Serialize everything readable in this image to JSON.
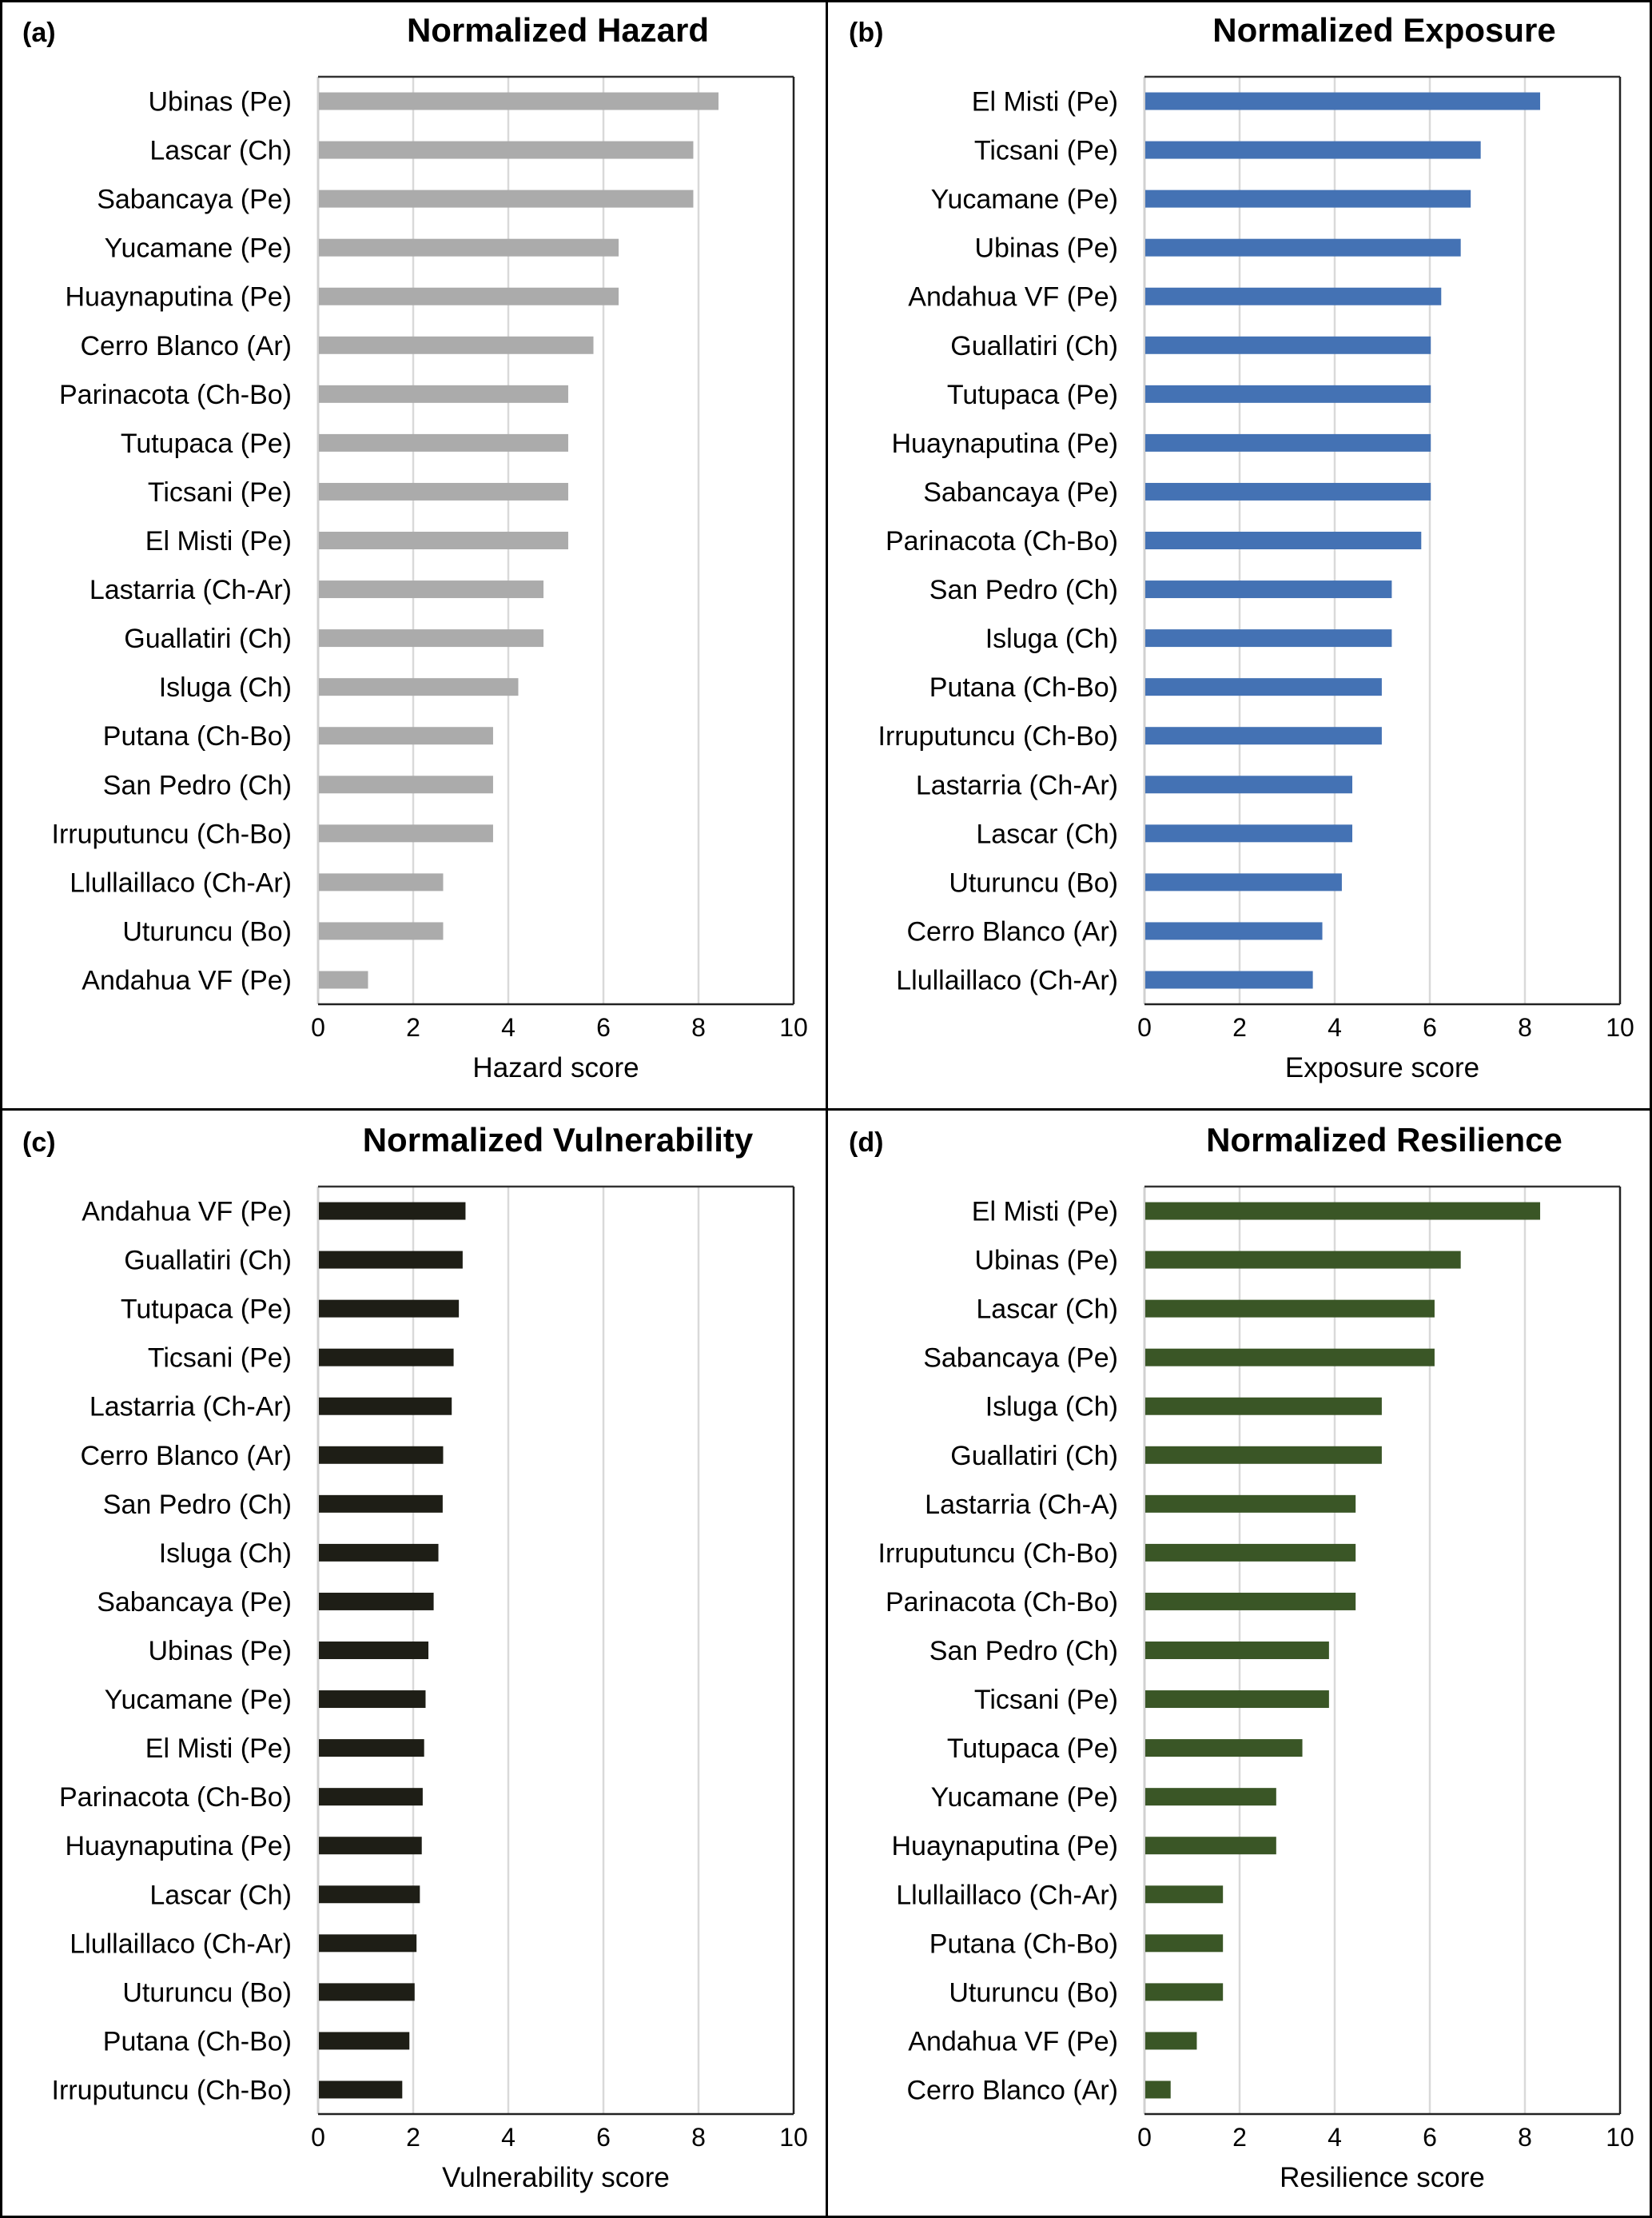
{
  "figure": {
    "panels": [
      {
        "letter": "(a)",
        "title": "Normalized Hazard"
      },
      {
        "letter": "(b)",
        "title": "Normalized Exposure"
      },
      {
        "letter": "(c)",
        "title": "Normalized Vulnerability"
      },
      {
        "letter": "(d)",
        "title": "Normalized Resilience"
      }
    ]
  },
  "chart_data": [
    {
      "type": "bar",
      "orientation": "horizontal",
      "title": "Normalized Hazard",
      "panel": "(a)",
      "xlabel": "Hazard score",
      "ylabel": "",
      "xlim": [
        0,
        10
      ],
      "xticks": [
        "0",
        "2",
        "4",
        "6",
        "8",
        "10"
      ],
      "grid": true,
      "bar_color": "#ababab",
      "categories": [
        "Ubinas (Pe)",
        "Lascar (Ch)",
        "Sabancaya (Pe)",
        "Yucamane (Pe)",
        "Huaynaputina (Pe)",
        "Cerro Blanco (Ar)",
        "Parinacota (Ch-Bo)",
        "Tutupaca (Pe)",
        "Ticsani (Pe)",
        "El Misti (Pe)",
        "Lastarria (Ch-Ar)",
        "Guallatiri (Ch)",
        "Isluga (Ch)",
        "Putana (Ch-Bo)",
        "San Pedro (Ch)",
        "Irruputuncu (Ch-Bo)",
        "Llullaillaco (Ch-Ar)",
        "Uturuncu (Bo)",
        "Andahua VF (Pe)"
      ],
      "values": [
        8.42,
        7.89,
        7.89,
        6.32,
        6.32,
        5.79,
        5.26,
        5.26,
        5.26,
        5.26,
        4.74,
        4.74,
        4.21,
        3.68,
        3.68,
        3.68,
        2.63,
        2.63,
        1.05
      ]
    },
    {
      "type": "bar",
      "orientation": "horizontal",
      "title": "Normalized Exposure",
      "panel": "(b)",
      "xlabel": "Exposure score",
      "ylabel": "",
      "xlim": [
        0,
        10
      ],
      "xticks": [
        "0",
        "2",
        "4",
        "6",
        "8",
        "10"
      ],
      "grid": true,
      "bar_color": "#4472b4",
      "categories": [
        "El Misti (Pe)",
        "Ticsani (Pe)",
        "Yucamane (Pe)",
        "Ubinas (Pe)",
        "Andahua VF (Pe)",
        "Guallatiri (Ch)",
        "Tutupaca (Pe)",
        "Huaynaputina (Pe)",
        "Sabancaya (Pe)",
        "Parinacota (Ch-Bo)",
        "San Pedro (Ch)",
        "Isluga (Ch)",
        "Putana (Ch-Bo)",
        "Irruputuncu (Ch-Bo)",
        "Lastarria (Ch-Ar)",
        "Lascar (Ch)",
        "Uturuncu (Bo)",
        "Cerro Blanco (Ar)",
        "Llullaillaco (Ch-Ar)"
      ],
      "values": [
        8.32,
        7.07,
        6.86,
        6.65,
        6.24,
        6.02,
        6.02,
        6.02,
        6.02,
        5.82,
        5.2,
        5.2,
        4.99,
        4.99,
        4.37,
        4.37,
        4.15,
        3.74,
        3.54
      ]
    },
    {
      "type": "bar",
      "orientation": "horizontal",
      "title": "Normalized Vulnerability",
      "panel": "(c)",
      "xlabel": "Vulnerability score",
      "ylabel": "",
      "xlim": [
        0,
        10
      ],
      "xticks": [
        "0",
        "2",
        "4",
        "6",
        "8",
        "10"
      ],
      "grid": true,
      "bar_color": "#1e1e16",
      "categories": [
        "Andahua VF (Pe)",
        "Guallatiri (Ch)",
        "Tutupaca (Pe)",
        "Ticsani (Pe)",
        "Lastarria (Ch-Ar)",
        "Cerro Blanco (Ar)",
        "San Pedro (Ch)",
        "Isluga (Ch)",
        "Sabancaya (Pe)",
        "Ubinas (Pe)",
        "Yucamane (Pe)",
        "El Misti (Pe)",
        "Parinacota (Ch-Bo)",
        "Huaynaputina (Pe)",
        "Lascar (Ch)",
        "Llullaillaco (Ch-Ar)",
        "Uturuncu (Bo)",
        "Putana (Ch-Bo)",
        "Irruputuncu (Ch-Bo)"
      ],
      "values": [
        3.1,
        3.04,
        2.96,
        2.85,
        2.81,
        2.63,
        2.62,
        2.53,
        2.43,
        2.32,
        2.26,
        2.23,
        2.2,
        2.18,
        2.14,
        2.07,
        2.03,
        1.92,
        1.77
      ]
    },
    {
      "type": "bar",
      "orientation": "horizontal",
      "title": "Normalized Resilience",
      "panel": "(d)",
      "xlabel": "Resilience score",
      "ylabel": "",
      "xlim": [
        0,
        10
      ],
      "xticks": [
        "0",
        "2",
        "4",
        "6",
        "8",
        "10"
      ],
      "grid": true,
      "bar_color": "#3a5626",
      "categories": [
        "El Misti (Pe)",
        "Ubinas (Pe)",
        "Lascar (Ch)",
        "Sabancaya (Pe)",
        "Isluga (Ch)",
        "Guallatiri (Ch)",
        "Lastarria (Ch-A)",
        "Irruputuncu (Ch-Bo)",
        "Parinacota (Ch-Bo)",
        "San Pedro (Ch)",
        "Ticsani (Pe)",
        "Tutupaca (Pe)",
        "Yucamane (Pe)",
        "Huaynaputina (Pe)",
        "Llullaillaco (Ch-Ar)",
        "Putana (Ch-Bo)",
        "Uturuncu (Bo)",
        "Andahua VF (Pe)",
        "Cerro Blanco (Ar)"
      ],
      "values": [
        8.32,
        6.65,
        6.1,
        6.1,
        4.99,
        4.99,
        4.44,
        4.44,
        4.44,
        3.88,
        3.88,
        3.32,
        2.77,
        2.77,
        1.65,
        1.65,
        1.65,
        1.1,
        0.55
      ]
    }
  ]
}
